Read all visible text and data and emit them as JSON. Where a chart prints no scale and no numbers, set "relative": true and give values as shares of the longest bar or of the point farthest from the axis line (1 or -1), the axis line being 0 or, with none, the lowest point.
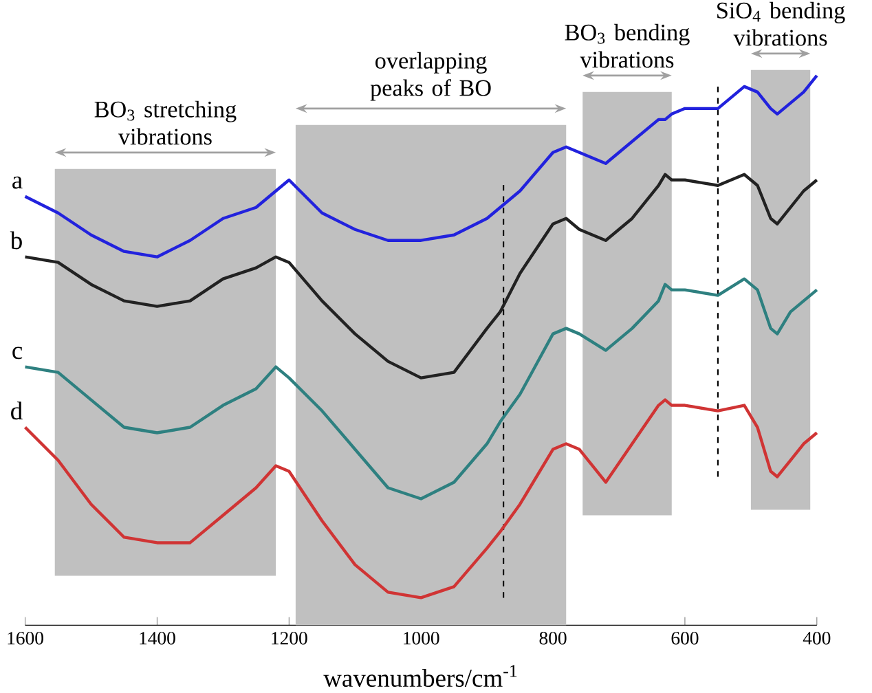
{
  "chart_data": {
    "type": "line",
    "relative": true,
    "xlabel": "wavenumbers/cm$^{-1}$",
    "xlim": [
      1600,
      400
    ],
    "xticks": [
      1600,
      1400,
      1200,
      1000,
      800,
      600,
      400
    ],
    "x": [
      1600,
      1550,
      1500,
      1450,
      1400,
      1350,
      1300,
      1250,
      1220,
      1200,
      1150,
      1100,
      1050,
      1000,
      950,
      900,
      880,
      850,
      800,
      780,
      760,
      720,
      680,
      640,
      630,
      620,
      600,
      550,
      510,
      490,
      470,
      460,
      440,
      420,
      400
    ],
    "series": [
      {
        "name": "a",
        "color": "#2222dd",
        "values": [
          0.78,
          0.75,
          0.71,
          0.68,
          0.67,
          0.7,
          0.74,
          0.76,
          0.79,
          0.81,
          0.75,
          0.72,
          0.7,
          0.7,
          0.71,
          0.74,
          0.76,
          0.79,
          0.86,
          0.87,
          0.86,
          0.84,
          0.88,
          0.92,
          0.92,
          0.93,
          0.94,
          0.94,
          0.98,
          0.97,
          0.94,
          0.93,
          0.95,
          0.97,
          1.0
        ]
      },
      {
        "name": "b",
        "color": "#222222",
        "values": [
          0.67,
          0.66,
          0.62,
          0.59,
          0.58,
          0.59,
          0.63,
          0.65,
          0.67,
          0.66,
          0.59,
          0.53,
          0.48,
          0.45,
          0.46,
          0.54,
          0.57,
          0.64,
          0.73,
          0.74,
          0.72,
          0.7,
          0.74,
          0.8,
          0.82,
          0.81,
          0.81,
          0.8,
          0.82,
          0.8,
          0.74,
          0.73,
          0.76,
          0.79,
          0.81
        ]
      },
      {
        "name": "c",
        "color": "#2e8080",
        "values": [
          0.47,
          0.46,
          0.41,
          0.36,
          0.35,
          0.36,
          0.4,
          0.43,
          0.47,
          0.45,
          0.39,
          0.32,
          0.25,
          0.23,
          0.26,
          0.33,
          0.37,
          0.42,
          0.53,
          0.54,
          0.53,
          0.5,
          0.54,
          0.59,
          0.62,
          0.61,
          0.61,
          0.6,
          0.63,
          0.61,
          0.54,
          0.53,
          0.57,
          0.59,
          0.61
        ]
      },
      {
        "name": "d",
        "color": "#d03434",
        "values": [
          0.36,
          0.3,
          0.22,
          0.16,
          0.15,
          0.15,
          0.2,
          0.25,
          0.29,
          0.28,
          0.19,
          0.11,
          0.06,
          0.05,
          0.07,
          0.14,
          0.17,
          0.22,
          0.32,
          0.33,
          0.32,
          0.26,
          0.33,
          0.4,
          0.41,
          0.4,
          0.4,
          0.39,
          0.4,
          0.36,
          0.28,
          0.27,
          0.3,
          0.33,
          0.35
        ]
      }
    ],
    "bands": [
      {
        "axis": "x",
        "from": 1555,
        "to": 1220,
        "label": "BO$_{3}$ stretching vibrations",
        "color": "#c0c0c0"
      },
      {
        "axis": "x",
        "from": 1190,
        "to": 780,
        "label": "overlapping peaks of BO",
        "color": "#c0c0c0"
      },
      {
        "axis": "x",
        "from": 755,
        "to": 620,
        "label": "BO$_{3}$ bending vibrations",
        "color": "#c0c0c0"
      },
      {
        "axis": "x",
        "from": 500,
        "to": 410,
        "label": "SiO$_{4}$ bending vibrations",
        "color": "#c0c0c0"
      }
    ],
    "ref_lines": [
      {
        "axis": "x",
        "value": 875,
        "color": "#000000",
        "line_style": "dashed"
      },
      {
        "axis": "x",
        "value": 550,
        "color": "#000000",
        "line_style": "dashed"
      }
    ],
    "marker": "none",
    "line_style": "solid",
    "legend": false,
    "grid": false
  }
}
